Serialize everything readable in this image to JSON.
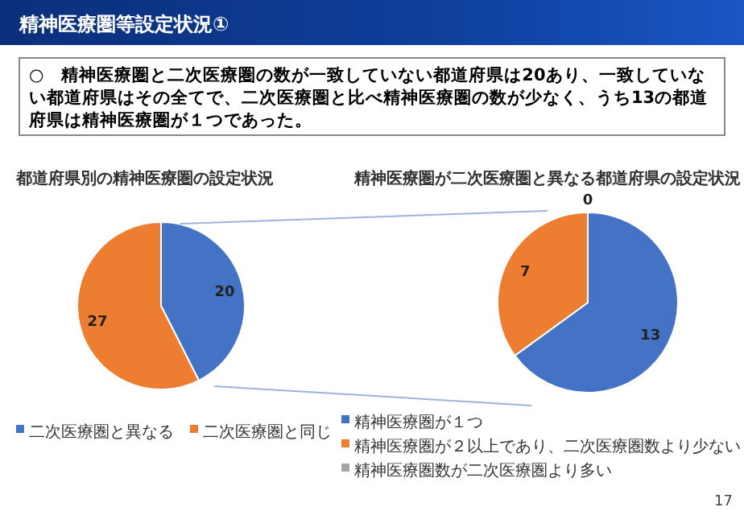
{
  "chart_data": [
    {
      "type": "other",
      "title": "精神医療圏等設定状況①",
      "annotations": [
        "○　精神医療圏と二次医療圏の数が一致していない都道府県は20あり、一致していない都道府県はその全てで、二次医療圏と比べ精神医療圏の数が少なく、うち13の都道府県は精神医療圏が１つであった。",
        "17"
      ]
    },
    {
      "type": "pie",
      "title": "都道府県別の精神医療圏の設定状況",
      "categories": [
        "二次医療圏と異なる",
        "二次医療圏と同じ"
      ],
      "values": [
        20,
        27
      ],
      "colors": [
        "#4472c4",
        "#ed7d31"
      ],
      "data_labels": true,
      "legend": "bottom"
    },
    {
      "type": "pie",
      "title": "精神医療圏が二次医療圏と異なる都道府県の設定状況",
      "categories": [
        "精神医療圏が１つ",
        "精神医療圏が２以上であり、二次医療圏数より少ない",
        "精神医療圏数が二次医療圏より多い"
      ],
      "values": [
        13,
        7,
        0
      ],
      "colors": [
        "#4472c4",
        "#ed7d31",
        "#a5a5a5"
      ],
      "value_labels": [
        "13",
        "7",
        "0"
      ],
      "legend": "bottom"
    }
  ]
}
